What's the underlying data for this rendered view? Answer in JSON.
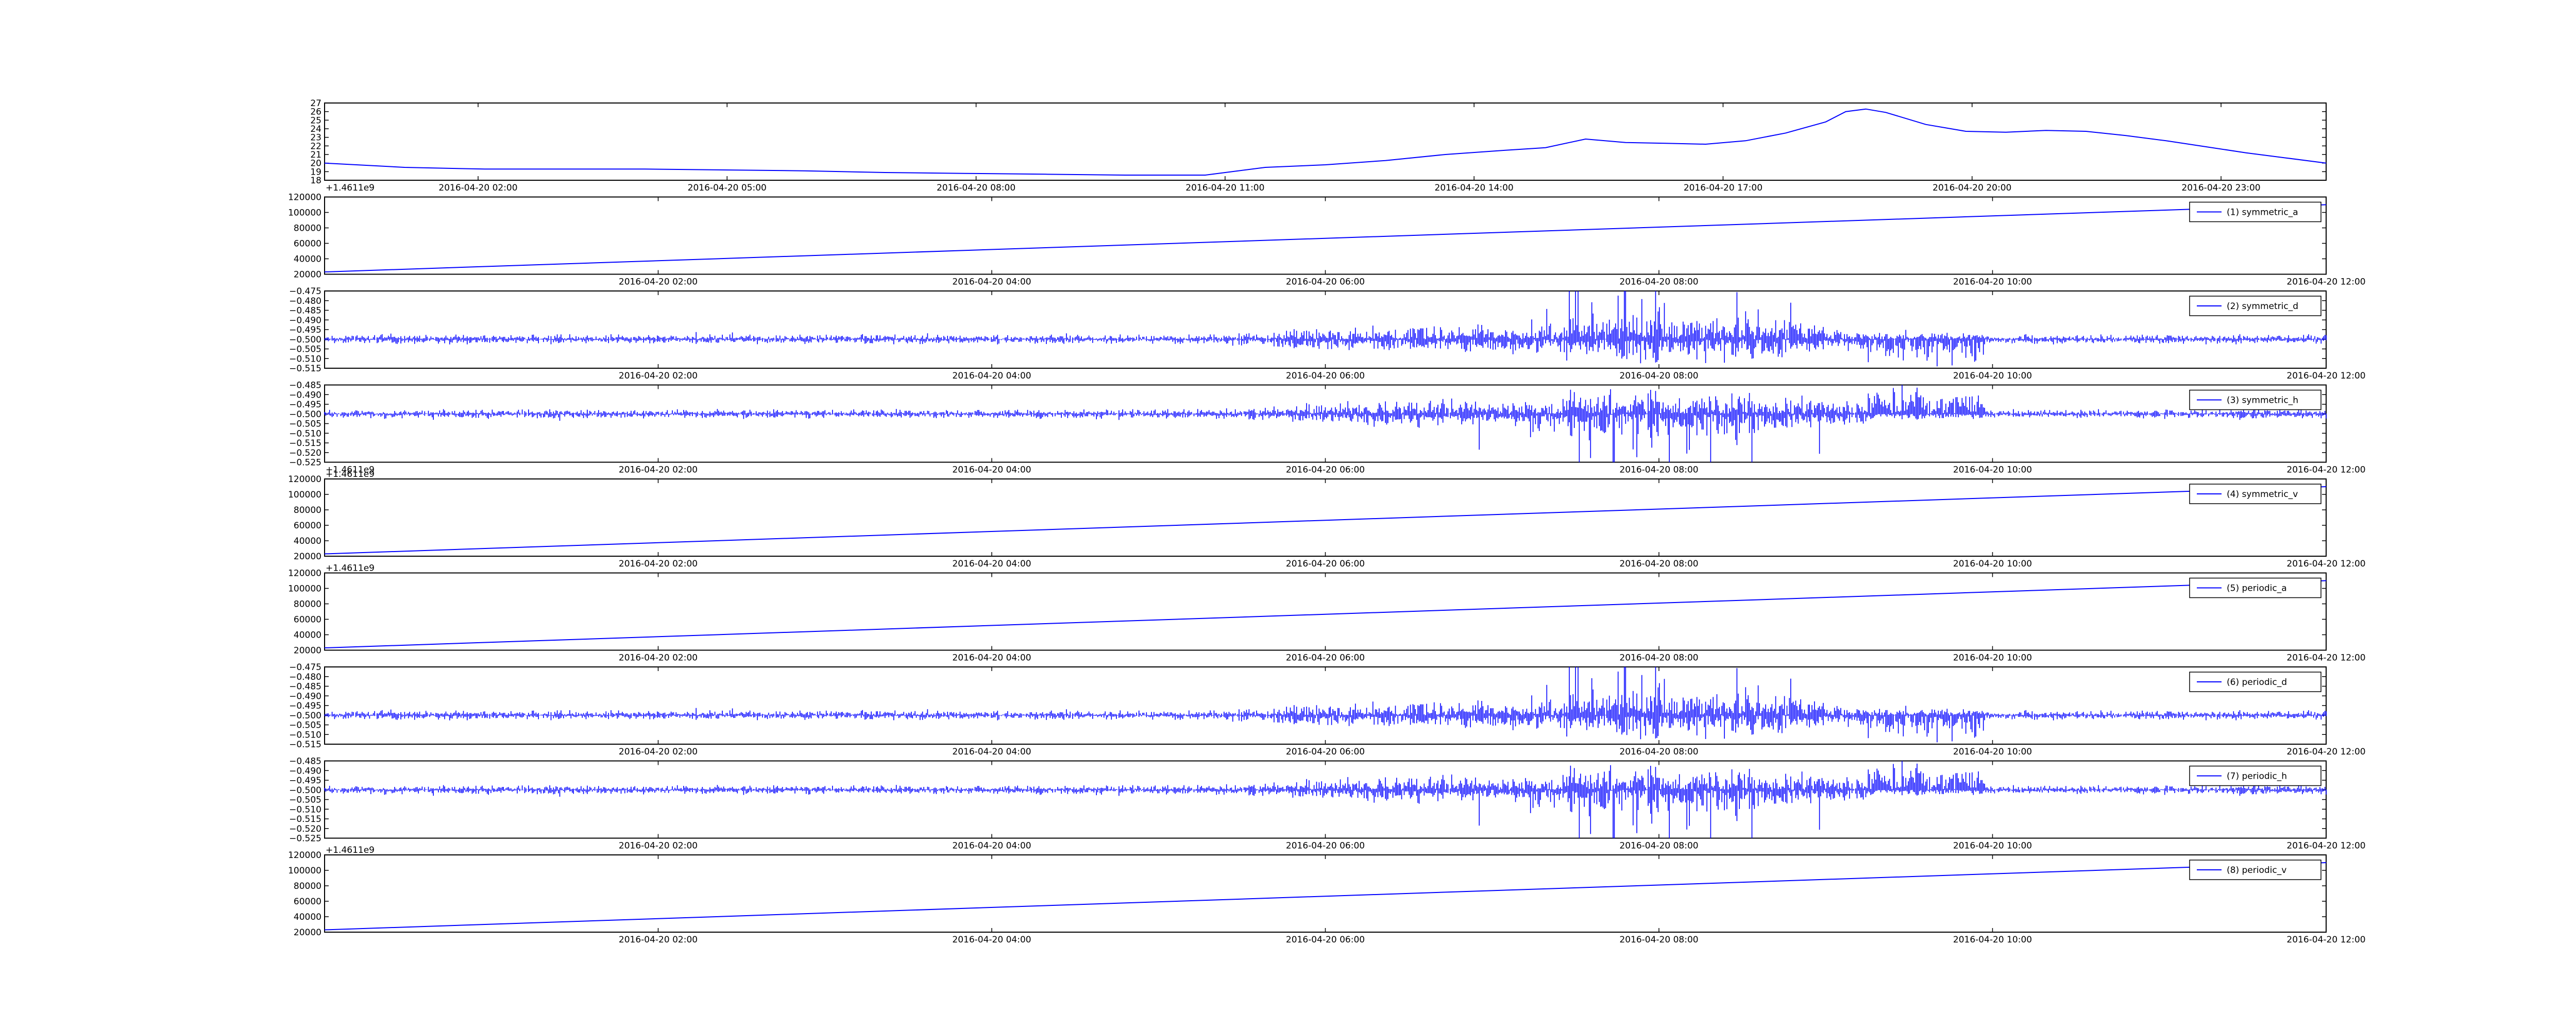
{
  "colors": {
    "line": "#0000ff",
    "axes": "#000000",
    "background": "#ffffff"
  },
  "chart_data": [
    {
      "type": "line",
      "title": "",
      "xlabel": "",
      "ylabel": "",
      "ylim": [
        18,
        27
      ],
      "yticks": [
        "18",
        "19",
        "20",
        "21",
        "22",
        "23",
        "24",
        "25",
        "26",
        "27"
      ],
      "x_ticks": [
        "2016-04-20 02:00",
        "2016-04-20 05:00",
        "2016-04-20 08:00",
        "2016-04-20 11:00",
        "2016-04-20 14:00",
        "2016-04-20 17:00",
        "2016-04-20 20:00",
        "2016-04-20 23:00"
      ],
      "grid": false,
      "series": [
        {
          "shape": "smooth",
          "x": [
            0,
            0.04,
            0.08,
            0.12,
            0.16,
            0.2,
            0.24,
            0.28,
            0.32,
            0.36,
            0.4,
            0.44,
            0.47,
            0.5,
            0.53,
            0.56,
            0.59,
            0.61,
            0.63,
            0.65,
            0.67,
            0.69,
            0.71,
            0.73,
            0.75,
            0.76,
            0.77,
            0.78,
            0.8,
            0.82,
            0.84,
            0.86,
            0.88,
            0.9,
            0.92,
            0.94,
            0.96,
            0.98,
            1
          ],
          "values": [
            20.0,
            19.5,
            19.3,
            19.3,
            19.3,
            19.2,
            19.1,
            18.9,
            18.8,
            18.7,
            18.6,
            18.6,
            19.5,
            19.8,
            20.3,
            21.0,
            21.5,
            21.8,
            22.8,
            22.4,
            22.3,
            22.2,
            22.6,
            23.5,
            24.8,
            26.0,
            26.3,
            25.9,
            24.5,
            23.7,
            23.6,
            23.8,
            23.7,
            23.2,
            22.6,
            21.9,
            21.2,
            20.6,
            20.0
          ]
        }
      ]
    },
    {
      "type": "line",
      "ylim": [
        20000,
        120000
      ],
      "yticks": [
        "20000",
        "40000",
        "60000",
        "80000",
        "100000",
        "120000"
      ],
      "offset_label": "",
      "x_ticks": [
        "2016-04-20 02:00",
        "2016-04-20 04:00",
        "2016-04-20 06:00",
        "2016-04-20 08:00",
        "2016-04-20 10:00",
        "2016-04-20 12:00"
      ],
      "legend_position": "top-right",
      "series": [
        {
          "name": "(1) symmetric_a",
          "shape": "ramp",
          "start": 23000,
          "end": 110000
        }
      ]
    },
    {
      "type": "line",
      "ylim": [
        -0.515,
        -0.475
      ],
      "yticks": [
        "−0.515",
        "−0.510",
        "−0.505",
        "−0.500",
        "−0.495",
        "−0.490",
        "−0.485",
        "−0.480",
        "−0.475"
      ],
      "x_ticks": [
        "2016-04-20 02:00",
        "2016-04-20 04:00",
        "2016-04-20 06:00",
        "2016-04-20 08:00",
        "2016-04-20 10:00",
        "2016-04-20 12:00"
      ],
      "legend_position": "top-right",
      "series": [
        {
          "name": "(2) symmetric_d",
          "shape": "noise",
          "center": -0.5,
          "seed": 11,
          "flip": false
        }
      ]
    },
    {
      "type": "line",
      "ylim": [
        -0.525,
        -0.485
      ],
      "yticks": [
        "−0.525",
        "−0.520",
        "−0.515",
        "−0.510",
        "−0.505",
        "−0.500",
        "−0.495",
        "−0.490",
        "−0.485"
      ],
      "x_ticks": [
        "2016-04-20 02:00",
        "2016-04-20 04:00",
        "2016-04-20 06:00",
        "2016-04-20 08:00",
        "2016-04-20 10:00",
        "2016-04-20 12:00"
      ],
      "legend_position": "top-right",
      "series": [
        {
          "name": "(3) symmetric_h",
          "shape": "noise",
          "center": -0.5,
          "seed": 23,
          "flip": true
        }
      ]
    },
    {
      "type": "line",
      "ylim": [
        20000,
        120000
      ],
      "yticks": [
        "20000",
        "40000",
        "60000",
        "80000",
        "100000",
        "120000"
      ],
      "offset_label": "+1.4611e9",
      "x_ticks": [
        "2016-04-20 02:00",
        "2016-04-20 04:00",
        "2016-04-20 06:00",
        "2016-04-20 08:00",
        "2016-04-20 10:00",
        "2016-04-20 12:00"
      ],
      "legend_position": "top-right",
      "series": [
        {
          "name": "(4) symmetric_v",
          "shape": "ramp",
          "start": 23000,
          "end": 110000
        }
      ]
    },
    {
      "type": "line",
      "ylim": [
        20000,
        120000
      ],
      "yticks": [
        "20000",
        "40000",
        "60000",
        "80000",
        "100000",
        "120000"
      ],
      "offset_label": "+1.4611e9",
      "x_ticks": [
        "2016-04-20 02:00",
        "2016-04-20 04:00",
        "2016-04-20 06:00",
        "2016-04-20 08:00",
        "2016-04-20 10:00",
        "2016-04-20 12:00"
      ],
      "legend_position": "top-right",
      "series": [
        {
          "name": "(5) periodic_a",
          "shape": "ramp",
          "start": 23000,
          "end": 110000
        }
      ]
    },
    {
      "type": "line",
      "ylim": [
        -0.515,
        -0.475
      ],
      "yticks": [
        "−0.515",
        "−0.510",
        "−0.505",
        "−0.500",
        "−0.495",
        "−0.490",
        "−0.485",
        "−0.480",
        "−0.475"
      ],
      "x_ticks": [
        "2016-04-20 02:00",
        "2016-04-20 04:00",
        "2016-04-20 06:00",
        "2016-04-20 08:00",
        "2016-04-20 10:00",
        "2016-04-20 12:00"
      ],
      "legend_position": "top-right",
      "series": [
        {
          "name": "(6) periodic_d",
          "shape": "noise",
          "center": -0.5,
          "seed": 11,
          "flip": false
        }
      ]
    },
    {
      "type": "line",
      "ylim": [
        -0.525,
        -0.485
      ],
      "yticks": [
        "−0.525",
        "−0.520",
        "−0.515",
        "−0.510",
        "−0.505",
        "−0.500",
        "−0.495",
        "−0.490",
        "−0.485"
      ],
      "x_ticks": [
        "2016-04-20 02:00",
        "2016-04-20 04:00",
        "2016-04-20 06:00",
        "2016-04-20 08:00",
        "2016-04-20 10:00",
        "2016-04-20 12:00"
      ],
      "legend_position": "top-right",
      "series": [
        {
          "name": "(7) periodic_h",
          "shape": "noise",
          "center": -0.5,
          "seed": 23,
          "flip": true
        }
      ]
    },
    {
      "type": "line",
      "ylim": [
        20000,
        120000
      ],
      "yticks": [
        "20000",
        "40000",
        "60000",
        "80000",
        "100000",
        "120000"
      ],
      "offset_label": "+1.4611e9",
      "x_ticks": [
        "2016-04-20 02:00",
        "2016-04-20 04:00",
        "2016-04-20 06:00",
        "2016-04-20 08:00",
        "2016-04-20 10:00",
        "2016-04-20 12:00"
      ],
      "legend_position": "top-right",
      "series": [
        {
          "name": "(8) periodic_v",
          "shape": "ramp",
          "start": 23000,
          "end": 110000
        }
      ]
    }
  ],
  "offset_labels": [
    "+1.4611e9",
    "+1.4611e9",
    "+1.4611e9",
    "+1.4611e9"
  ]
}
